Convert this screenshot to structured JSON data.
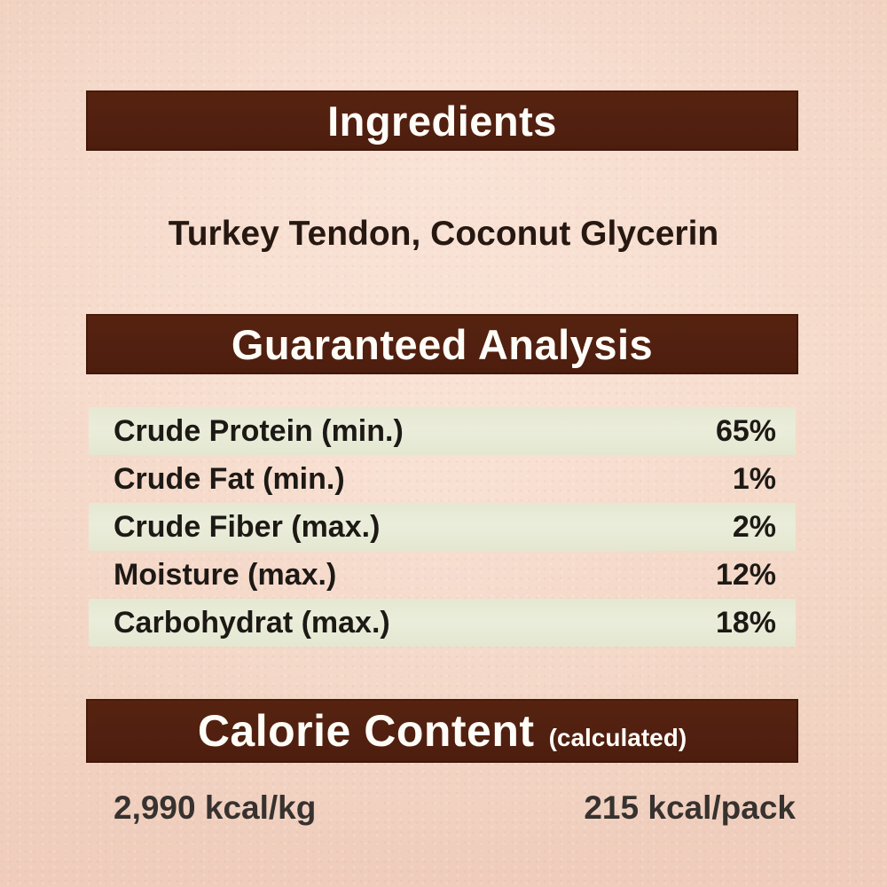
{
  "page": {
    "background_color": "#f2d2c1",
    "banner_color": "#522010",
    "banner_text_color": "#fffdf8",
    "row_highlight_color": "#e7ead6",
    "body_text_color": "#261811"
  },
  "ingredients": {
    "title": "Ingredients",
    "list": "Turkey Tendon, Coconut Glycerin"
  },
  "guaranteed_analysis": {
    "title": "Guaranteed Analysis",
    "rows": [
      {
        "label": "Crude Protein (min.)",
        "value": "65%"
      },
      {
        "label": "Crude Fat (min.)",
        "value": "1%"
      },
      {
        "label": "Crude Fiber (max.)",
        "value": "2%"
      },
      {
        "label": "Moisture (max.)",
        "value": "12%"
      },
      {
        "label": "Carbohydrat (max.)",
        "value": "18%"
      }
    ]
  },
  "calorie_content": {
    "title": "Calorie Content",
    "qualifier": "(calculated)",
    "per_kg": "2,990 kcal/kg",
    "per_pack": "215 kcal/pack"
  }
}
